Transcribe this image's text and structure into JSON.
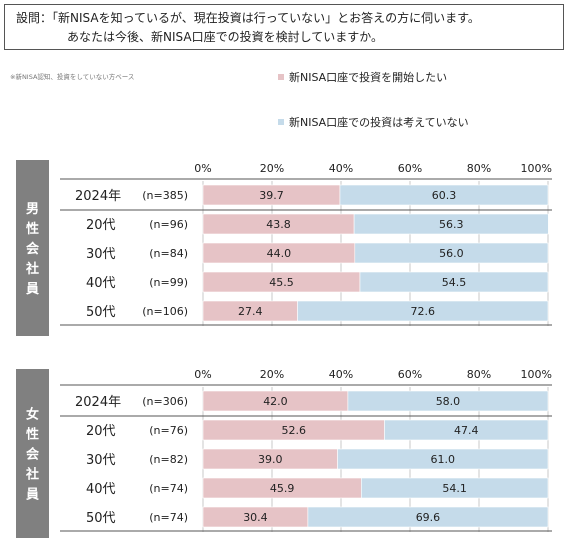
{
  "question": {
    "line1": "設問：「新NISAを知っているが、現在投資は行っていない」とお答えの方に伺います。",
    "line2": "あなたは今後、新NISA口座での投資を検討していますか。"
  },
  "note": "※新NISA認知、投資をしていない方ベース",
  "legend": {
    "start": "新NISA口座で投資を開始したい",
    "not": "新NISA口座での投資は考えていない"
  },
  "colors": {
    "start": "#e6c3c6",
    "not": "#c5dbea",
    "group_label_bg": "#808080",
    "separator": "#555555"
  },
  "chart_data": [
    {
      "type": "bar",
      "group": "男性会社員",
      "x_ticks": [
        "0%",
        "20%",
        "40%",
        "60%",
        "80%",
        "100%"
      ],
      "xlim": [
        0,
        100
      ],
      "categories": [
        "2024年",
        "20代",
        "30代",
        "40代",
        "50代"
      ],
      "n": [
        "(n=385)",
        "(n=96)",
        "(n=84)",
        "(n=99)",
        "(n=106)"
      ],
      "series": [
        {
          "name": "新NISA口座で投資を開始したい",
          "values": [
            39.7,
            43.8,
            44.0,
            45.5,
            27.4
          ]
        },
        {
          "name": "新NISA口座での投資は考えていない",
          "values": [
            60.3,
            56.3,
            56.0,
            54.5,
            72.6
          ]
        }
      ]
    },
    {
      "type": "bar",
      "group": "女性会社員",
      "x_ticks": [
        "0%",
        "20%",
        "40%",
        "60%",
        "80%",
        "100%"
      ],
      "xlim": [
        0,
        100
      ],
      "categories": [
        "2024年",
        "20代",
        "30代",
        "40代",
        "50代"
      ],
      "n": [
        "(n=306)",
        "(n=76)",
        "(n=82)",
        "(n=74)",
        "(n=74)"
      ],
      "series": [
        {
          "name": "新NISA口座で投資を開始したい",
          "values": [
            42.0,
            52.6,
            39.0,
            45.9,
            30.4
          ]
        },
        {
          "name": "新NISA口座での投資は考えていない",
          "values": [
            58.0,
            47.4,
            61.0,
            54.1,
            69.6
          ]
        }
      ]
    }
  ]
}
